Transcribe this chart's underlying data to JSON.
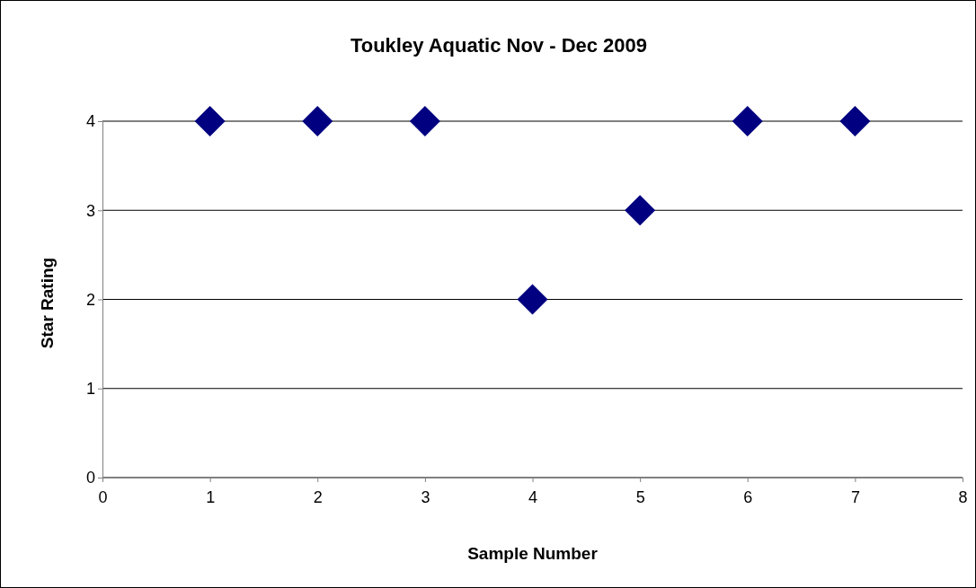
{
  "chart_data": {
    "type": "scatter",
    "title": "Toukley Aquatic Nov - Dec 2009",
    "xlabel": "Sample Number",
    "ylabel": "Star Rating",
    "x": [
      1,
      2,
      3,
      4,
      5,
      6,
      7
    ],
    "series": [
      {
        "color": "#000080",
        "values": [
          4,
          4,
          4,
          2,
          3,
          4,
          4
        ]
      }
    ],
    "xlim": [
      0,
      8
    ],
    "xticks": [
      0,
      1,
      2,
      3,
      4,
      5,
      6,
      7,
      8
    ],
    "ylim": [
      0,
      4
    ],
    "yticks": [
      0,
      1,
      2,
      3,
      4
    ],
    "grid": "y",
    "marker": "diamond"
  }
}
